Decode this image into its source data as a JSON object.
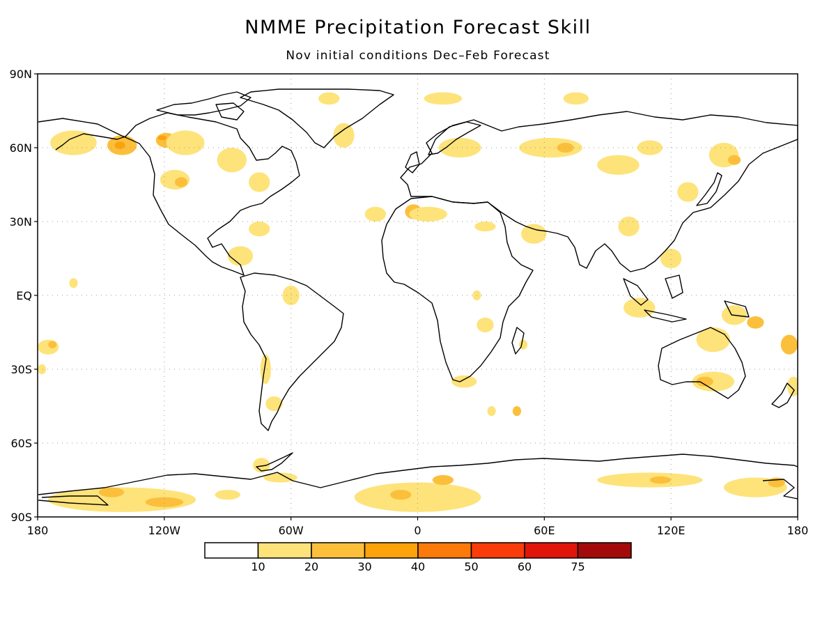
{
  "title": "NMME Precipitation Forecast Skill",
  "subtitle": "Nov initial conditions   Dec–Feb Forecast",
  "map": {
    "projection": "equirectangular",
    "lon_range": [
      -180,
      180
    ],
    "lat_range": [
      -90,
      90
    ],
    "gridlines": "dotted",
    "lat_ticks": [
      {
        "lat": 90,
        "label": "90N"
      },
      {
        "lat": 60,
        "label": "60N"
      },
      {
        "lat": 30,
        "label": "30N"
      },
      {
        "lat": 0,
        "label": "EQ"
      },
      {
        "lat": -30,
        "label": "30S"
      },
      {
        "lat": -60,
        "label": "60S"
      },
      {
        "lat": -90,
        "label": "90S"
      }
    ],
    "lon_ticks": [
      {
        "lon": -180,
        "label": "180"
      },
      {
        "lon": -120,
        "label": "120W"
      },
      {
        "lon": -60,
        "label": "60W"
      },
      {
        "lon": 0,
        "label": "0"
      },
      {
        "lon": 60,
        "label": "60E"
      },
      {
        "lon": 120,
        "label": "120E"
      },
      {
        "lon": 180,
        "label": "180"
      }
    ]
  },
  "colorbar": {
    "bins": [
      {
        "color": "#ffffff"
      },
      {
        "color": "#fde37a"
      },
      {
        "color": "#fcbf3c"
      },
      {
        "color": "#fca20a"
      },
      {
        "color": "#fc7a0a"
      },
      {
        "color": "#f93c0a"
      },
      {
        "color": "#e1150a"
      },
      {
        "color": "#a30a0a"
      }
    ],
    "labels": [
      "10",
      "20",
      "30",
      "40",
      "50",
      "60",
      "75"
    ]
  },
  "skill_regions": [
    {
      "lon": -163,
      "lat": 62,
      "w": 22,
      "h": 10,
      "level": 1
    },
    {
      "lon": -140,
      "lat": 61,
      "w": 14,
      "h": 8,
      "level": 2
    },
    {
      "lon": -141,
      "lat": 61,
      "w": 5,
      "h": 3,
      "level": 3
    },
    {
      "lon": -119,
      "lat": 63,
      "w": 10,
      "h": 6,
      "level": 2
    },
    {
      "lon": -121,
      "lat": 64,
      "w": 4,
      "h": 2,
      "level": 3
    },
    {
      "lon": -110,
      "lat": 62,
      "w": 18,
      "h": 10,
      "level": 1
    },
    {
      "lon": -115,
      "lat": 47,
      "w": 14,
      "h": 8,
      "level": 1
    },
    {
      "lon": -112,
      "lat": 46,
      "w": 6,
      "h": 4,
      "level": 2
    },
    {
      "lon": -88,
      "lat": 55,
      "w": 14,
      "h": 10,
      "level": 1
    },
    {
      "lon": -75,
      "lat": 46,
      "w": 10,
      "h": 8,
      "level": 1
    },
    {
      "lon": -84,
      "lat": 16,
      "w": 12,
      "h": 8,
      "level": 1
    },
    {
      "lon": -75,
      "lat": 27,
      "w": 10,
      "h": 6,
      "level": 1
    },
    {
      "lon": -163,
      "lat": 5,
      "w": 4,
      "h": 4,
      "level": 1
    },
    {
      "lon": -175,
      "lat": -21,
      "w": 10,
      "h": 6,
      "level": 1
    },
    {
      "lon": -173,
      "lat": -20,
      "w": 4,
      "h": 3,
      "level": 2
    },
    {
      "lon": -178,
      "lat": -30,
      "w": 4,
      "h": 4,
      "level": 1
    },
    {
      "lon": -72,
      "lat": -30,
      "w": 5,
      "h": 12,
      "level": 1
    },
    {
      "lon": -68,
      "lat": -44,
      "w": 8,
      "h": 6,
      "level": 1
    },
    {
      "lon": -60,
      "lat": 0,
      "w": 8,
      "h": 8,
      "level": 1
    },
    {
      "lon": -20,
      "lat": 33,
      "w": 10,
      "h": 6,
      "level": 1
    },
    {
      "lon": -2,
      "lat": 34,
      "w": 8,
      "h": 6,
      "level": 2
    },
    {
      "lon": 5,
      "lat": 33,
      "w": 18,
      "h": 6,
      "level": 1
    },
    {
      "lon": 20,
      "lat": 60,
      "w": 20,
      "h": 8,
      "level": 1
    },
    {
      "lon": 63,
      "lat": 60,
      "w": 30,
      "h": 8,
      "level": 1
    },
    {
      "lon": 70,
      "lat": 60,
      "w": 8,
      "h": 4,
      "level": 2
    },
    {
      "lon": 95,
      "lat": 53,
      "w": 20,
      "h": 8,
      "level": 1
    },
    {
      "lon": 110,
      "lat": 60,
      "w": 12,
      "h": 6,
      "level": 1
    },
    {
      "lon": 145,
      "lat": 57,
      "w": 14,
      "h": 10,
      "level": 1
    },
    {
      "lon": 150,
      "lat": 55,
      "w": 6,
      "h": 4,
      "level": 2
    },
    {
      "lon": 128,
      "lat": 42,
      "w": 10,
      "h": 8,
      "level": 1
    },
    {
      "lon": 100,
      "lat": 28,
      "w": 10,
      "h": 8,
      "level": 1
    },
    {
      "lon": 12,
      "lat": 80,
      "w": 18,
      "h": 5,
      "level": 1
    },
    {
      "lon": 75,
      "lat": 80,
      "w": 12,
      "h": 5,
      "level": 1
    },
    {
      "lon": -35,
      "lat": 65,
      "w": 10,
      "h": 10,
      "level": 1
    },
    {
      "lon": -42,
      "lat": 80,
      "w": 10,
      "h": 5,
      "level": 1
    },
    {
      "lon": 105,
      "lat": -5,
      "w": 15,
      "h": 8,
      "level": 1
    },
    {
      "lon": 150,
      "lat": -8,
      "w": 12,
      "h": 8,
      "level": 1
    },
    {
      "lon": 160,
      "lat": -11,
      "w": 8,
      "h": 5,
      "level": 2
    },
    {
      "lon": 140,
      "lat": -18,
      "w": 16,
      "h": 10,
      "level": 1
    },
    {
      "lon": 120,
      "lat": 15,
      "w": 10,
      "h": 8,
      "level": 1
    },
    {
      "lon": 140,
      "lat": -35,
      "w": 20,
      "h": 8,
      "level": 1
    },
    {
      "lon": 136,
      "lat": -35,
      "w": 8,
      "h": 4,
      "level": 2
    },
    {
      "lon": 176,
      "lat": -20,
      "w": 8,
      "h": 8,
      "level": 2
    },
    {
      "lon": 178,
      "lat": -37,
      "w": 6,
      "h": 8,
      "level": 1
    },
    {
      "lon": 22,
      "lat": -35,
      "w": 12,
      "h": 5,
      "level": 1
    },
    {
      "lon": 47,
      "lat": -47,
      "w": 4,
      "h": 4,
      "level": 2
    },
    {
      "lon": 35,
      "lat": -47,
      "w": 4,
      "h": 4,
      "level": 1
    },
    {
      "lon": 50,
      "lat": -20,
      "w": 4,
      "h": 4,
      "level": 1
    },
    {
      "lon": 32,
      "lat": -12,
      "w": 8,
      "h": 6,
      "level": 1
    },
    {
      "lon": 32,
      "lat": 28,
      "w": 10,
      "h": 4,
      "level": 1
    },
    {
      "lon": 55,
      "lat": 25,
      "w": 12,
      "h": 8,
      "level": 1
    },
    {
      "lon": 28,
      "lat": 0,
      "w": 4,
      "h": 4,
      "level": 1
    },
    {
      "lon": -140,
      "lat": -83,
      "w": 70,
      "h": 10,
      "level": 1
    },
    {
      "lon": -120,
      "lat": -84,
      "w": 18,
      "h": 4,
      "level": 2
    },
    {
      "lon": -145,
      "lat": -80,
      "w": 12,
      "h": 4,
      "level": 2
    },
    {
      "lon": -90,
      "lat": -81,
      "w": 12,
      "h": 4,
      "level": 1
    },
    {
      "lon": 0,
      "lat": -82,
      "w": 60,
      "h": 12,
      "level": 1
    },
    {
      "lon": -8,
      "lat": -81,
      "w": 10,
      "h": 4,
      "level": 2
    },
    {
      "lon": 12,
      "lat": -75,
      "w": 10,
      "h": 4,
      "level": 2
    },
    {
      "lon": 110,
      "lat": -75,
      "w": 50,
      "h": 6,
      "level": 1
    },
    {
      "lon": 115,
      "lat": -75,
      "w": 10,
      "h": 3,
      "level": 2
    },
    {
      "lon": 160,
      "lat": -78,
      "w": 30,
      "h": 8,
      "level": 1
    },
    {
      "lon": 170,
      "lat": -76,
      "w": 8,
      "h": 4,
      "level": 2
    },
    {
      "lon": -74,
      "lat": -69,
      "w": 8,
      "h": 6,
      "level": 1
    },
    {
      "lon": -65,
      "lat": -74,
      "w": 16,
      "h": 4,
      "level": 1
    }
  ]
}
